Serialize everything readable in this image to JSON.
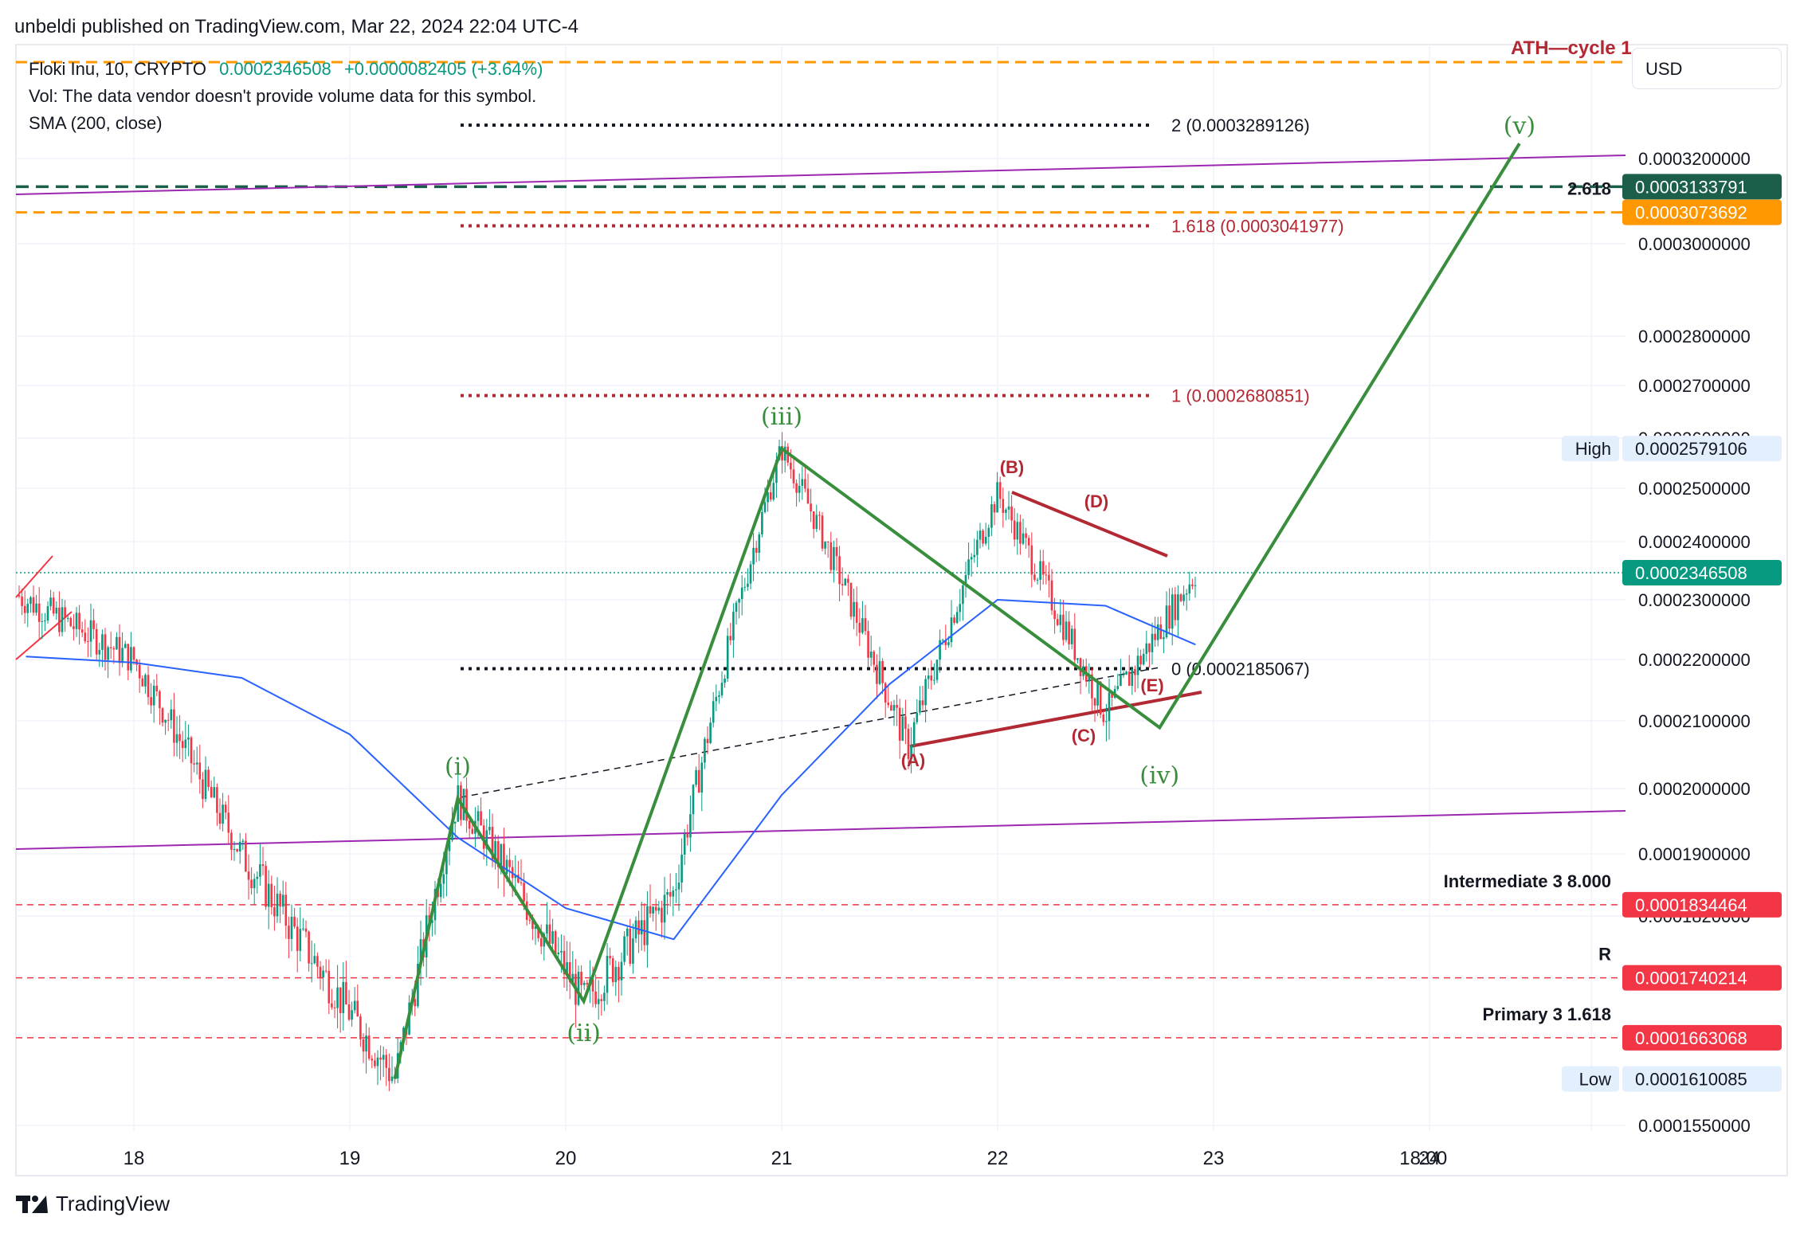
{
  "header": {
    "publisher": "unbeldi published on TradingView.com, Mar 22, 2024 22:04 UTC-4",
    "symbol": "Floki Inu, 10, CRYPTO",
    "price": "0.0002346508",
    "change": "+0.0000082405 (+3.64%)",
    "volume_note": "Vol: The data vendor doesn't provide volume data for this symbol.",
    "indicator": "SMA (200, close)"
  },
  "currency_button": "USD",
  "brand": "TradingView",
  "colors": {
    "up": "#089981",
    "down": "#f23645",
    "sma": "#2962ff",
    "wave_green": "#388e3c",
    "corrective_red": "#b22833",
    "trendline_purple": "#9c27b0",
    "orange_dash": "#ff9800",
    "teal_dash": "#1b5e4a"
  },
  "chart_data": {
    "type": "line",
    "title": "",
    "xlabel": "",
    "ylabel": "",
    "ylim": [
      0.00015,
      0.000328
    ],
    "x_ticks": [
      "18",
      "19",
      "20",
      "21",
      "22",
      "23",
      "24",
      "18:00"
    ],
    "y_ticks": [
      "0.0003200000",
      "0.0003000000",
      "0.0002800000",
      "0.0002700000",
      "0.0002600000",
      "0.0002500000",
      "0.0002400000",
      "0.0002300000",
      "0.0002200000",
      "0.0002100000",
      "0.0002000000",
      "0.0001900000",
      "0.0001820000",
      "0.0001550000"
    ],
    "price_badges": [
      {
        "label": "",
        "value": "0.0003133791",
        "bg": "#1b5e4a"
      },
      {
        "label": "2.618",
        "value": "0.0003073692",
        "bg": "#ff9800"
      },
      {
        "label": "High",
        "value": "0.0002579106",
        "bg": "#e3effd"
      },
      {
        "label": "",
        "value": "0.0002346508",
        "bg": "#089981"
      },
      {
        "label": "Intermediate 3 8.000",
        "value": "0.0001834464",
        "bg": "#f23645"
      },
      {
        "label": "R",
        "value": "0.0001740214",
        "bg": "#f23645"
      },
      {
        "label": "Primary 3 1.618",
        "value": "0.0001663068",
        "bg": "#f23645"
      },
      {
        "label": "Low",
        "value": "0.0001610085",
        "bg": "#e3effd"
      }
    ],
    "fib_levels": [
      {
        "label": "2 (0.0003289126)",
        "value": 0.0003289126,
        "color": "#131722"
      },
      {
        "label": "1.618 (0.0003041977)",
        "value": 0.0003041977,
        "color": "#b22833"
      },
      {
        "label": "1 (0.0002680851)",
        "value": 0.0002680851,
        "color": "#b22833"
      },
      {
        "label": "0 (0.0002185067)",
        "value": 0.0002185067,
        "color": "#131722"
      }
    ],
    "wave_labels": [
      "(i)",
      "(ii)",
      "(iii)",
      "(iv)",
      "(v)"
    ],
    "corrective_labels": [
      "(A)",
      "(B)",
      "(C)",
      "(D)",
      "(E)"
    ],
    "top_annotation": "ATH—cycle 1",
    "series": [
      {
        "name": "Elliott impulse",
        "x": [
          "Mar 19 05:00",
          "Mar 19 12:00",
          "Mar 20 02:00",
          "Mar 21 00:00",
          "Mar 22 18:00",
          "Mar 24 10:00"
        ],
        "values": [
          0.000161,
          0.0001985,
          0.000171,
          0.0002579,
          0.000209,
          0.000324
        ]
      },
      {
        "name": "SMA (200, close)",
        "x": [
          "Mar 17 12:00",
          "Mar 18 00:00",
          "Mar 18 12:00",
          "Mar 19 00:00",
          "Mar 19 12:00",
          "Mar 20 00:00",
          "Mar 20 12:00",
          "Mar 21 00:00",
          "Mar 21 12:00",
          "Mar 22 00:00",
          "Mar 22 12:00",
          "Mar 22 22:00"
        ],
        "values": [
          0.0002205,
          0.0002195,
          0.000217,
          0.000208,
          0.0001925,
          0.000183,
          0.000179,
          0.000199,
          0.000216,
          0.00023,
          0.000229,
          0.0002225
        ]
      },
      {
        "name": "Price",
        "x": [
          "Mar 17 12:00",
          "Mar 18 00:00",
          "Mar 18 12:00",
          "Mar 19 05:00",
          "Mar 19 12:00",
          "Mar 20 02:00",
          "Mar 20 12:00",
          "Mar 21 00:00",
          "Mar 21 14:00",
          "Mar 22 00:00",
          "Mar 22 12:00",
          "Mar 22 22:00"
        ],
        "values": [
          0.00023,
          0.00022,
          0.00019,
          0.000161,
          0.0001985,
          0.000171,
          0.000185,
          0.0002579,
          0.000206,
          0.000249,
          0.000211,
          0.0002347
        ]
      }
    ]
  }
}
